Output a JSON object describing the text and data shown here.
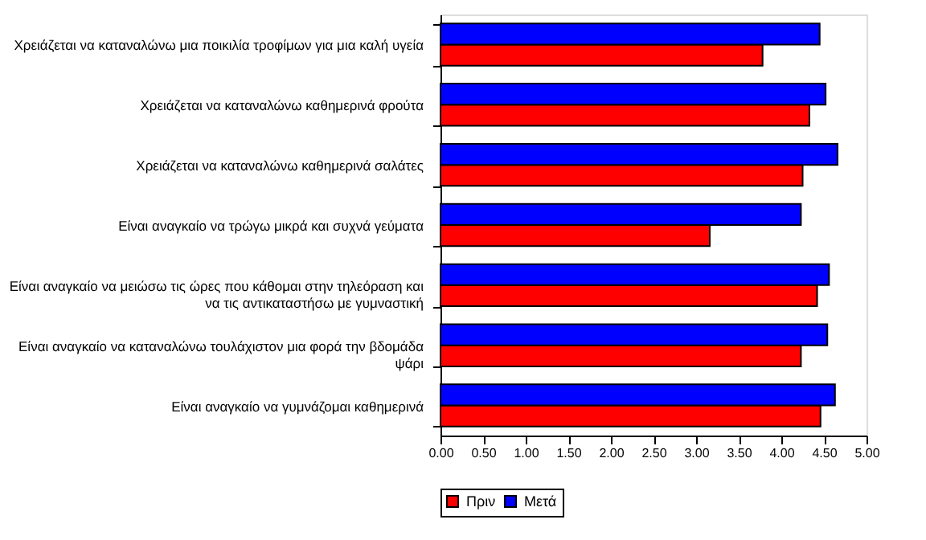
{
  "chart_data": {
    "type": "bar",
    "orientation": "horizontal",
    "categories": [
      "Χρειάζεται να καταναλώνω μια ποικιλία τροφίμων για μια καλή υγεία",
      "Χρειάζεται να καταναλώνω καθημερινά φρούτα",
      "Χρειάζεται να καταναλώνω καθημερινά σαλάτες",
      "Είναι αναγκαίο να τρώγω μικρά και συχνά γεύματα",
      "Είναι αναγκαίο να μειώσω τις ώρες που κάθομαι στην τηλεόραση και να τις αντικαταστήσω με γυμναστική",
      "Είναι αναγκαίο να καταναλώνω τουλάχιστον μια φορά την βδομάδα ψάρι",
      "Είναι αναγκαίο να γυμνάζομαι καθημερινά"
    ],
    "series": [
      {
        "name": "Πριν",
        "color": "#ff0000",
        "values": [
          3.78,
          4.33,
          4.25,
          3.16,
          4.42,
          4.23,
          4.46
        ]
      },
      {
        "name": "Μετά",
        "color": "#0000ff",
        "values": [
          4.45,
          4.52,
          4.66,
          4.23,
          4.56,
          4.54,
          4.63
        ]
      }
    ],
    "xlim": [
      0,
      5
    ],
    "xticks": [
      {
        "value": 0,
        "label": "0.00"
      },
      {
        "value": 0.5,
        "label": "0.50"
      },
      {
        "value": 1,
        "label": "1.00"
      },
      {
        "value": 1.5,
        "label": "1.50"
      },
      {
        "value": 2,
        "label": "2.00"
      },
      {
        "value": 2.5,
        "label": "2.50"
      },
      {
        "value": 3,
        "label": "3.00"
      },
      {
        "value": 3.5,
        "label": "3.50"
      },
      {
        "value": 4,
        "label": "4.00"
      },
      {
        "value": 4.5,
        "label": "4.50"
      },
      {
        "value": 5,
        "label": "5.00"
      }
    ],
    "grid": false,
    "legend": "bottom"
  }
}
